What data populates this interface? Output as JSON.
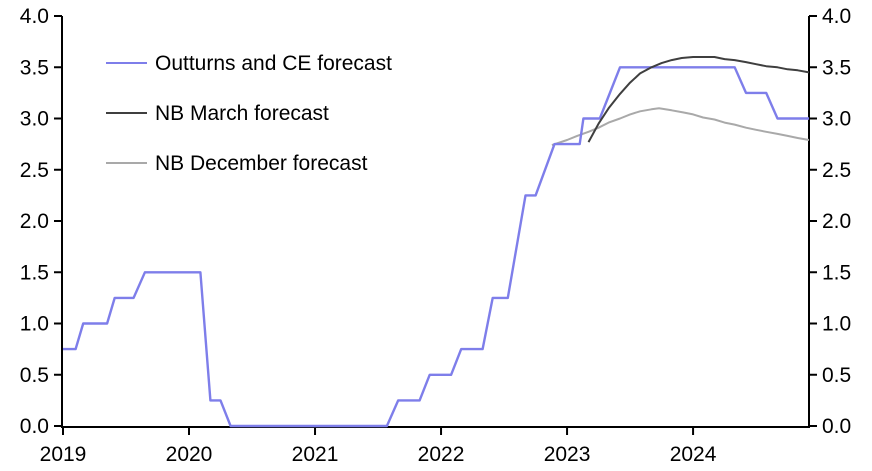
{
  "chart_data": {
    "type": "line",
    "title": "",
    "background": "#ffffff",
    "axis_color": "#000000",
    "grid": false,
    "legend_position": "top-left",
    "x_axis": {
      "range": [
        2019,
        2024.92
      ],
      "ticks": [
        2019,
        2020,
        2021,
        2022,
        2023,
        2024
      ],
      "tick_labels": [
        "2019",
        "2020",
        "2021",
        "2022",
        "2023",
        "2024"
      ]
    },
    "y_axis": {
      "range": [
        0,
        4
      ],
      "ticks": [
        0,
        0.5,
        1,
        1.5,
        2,
        2.5,
        3,
        3.5,
        4
      ],
      "tick_labels": [
        "0.0",
        "0.5",
        "1.0",
        "1.5",
        "2.0",
        "2.5",
        "3.0",
        "3.5",
        "4.0"
      ],
      "sides": [
        "left",
        "right"
      ]
    },
    "series": [
      {
        "id": "outturns-ce",
        "name": "Outturns and CE forecast",
        "color": "#7e7eea",
        "line_width": 2.4,
        "points": [
          [
            2019.0,
            0.75
          ],
          [
            2019.1,
            0.75
          ],
          [
            2019.16,
            1.0
          ],
          [
            2019.35,
            1.0
          ],
          [
            2019.41,
            1.25
          ],
          [
            2019.56,
            1.25
          ],
          [
            2019.65,
            1.5
          ],
          [
            2020.09,
            1.5
          ],
          [
            2020.17,
            0.25
          ],
          [
            2020.25,
            0.25
          ],
          [
            2020.33,
            0.0
          ],
          [
            2021.57,
            0.0
          ],
          [
            2021.66,
            0.25
          ],
          [
            2021.83,
            0.25
          ],
          [
            2021.91,
            0.5
          ],
          [
            2022.08,
            0.5
          ],
          [
            2022.16,
            0.75
          ],
          [
            2022.33,
            0.75
          ],
          [
            2022.41,
            1.25
          ],
          [
            2022.53,
            1.25
          ],
          [
            2022.67,
            2.25
          ],
          [
            2022.75,
            2.25
          ],
          [
            2022.9,
            2.75
          ],
          [
            2023.1,
            2.75
          ],
          [
            2023.13,
            3.0
          ],
          [
            2023.26,
            3.0
          ],
          [
            2023.42,
            3.5
          ],
          [
            2024.33,
            3.5
          ],
          [
            2024.42,
            3.25
          ],
          [
            2024.58,
            3.25
          ],
          [
            2024.67,
            3.0
          ],
          [
            2024.92,
            3.0
          ]
        ]
      },
      {
        "id": "nb-march",
        "name": "NB March forecast",
        "color": "#3f3f3f",
        "line_width": 2,
        "points": [
          [
            2023.17,
            2.77
          ],
          [
            2023.25,
            2.95
          ],
          [
            2023.33,
            3.1
          ],
          [
            2023.42,
            3.24
          ],
          [
            2023.5,
            3.35
          ],
          [
            2023.58,
            3.44
          ],
          [
            2023.67,
            3.5
          ],
          [
            2023.75,
            3.54
          ],
          [
            2023.83,
            3.57
          ],
          [
            2023.91,
            3.59
          ],
          [
            2024.0,
            3.6
          ],
          [
            2024.17,
            3.6
          ],
          [
            2024.25,
            3.58
          ],
          [
            2024.33,
            3.57
          ],
          [
            2024.42,
            3.55
          ],
          [
            2024.5,
            3.53
          ],
          [
            2024.58,
            3.51
          ],
          [
            2024.67,
            3.5
          ],
          [
            2024.75,
            3.48
          ],
          [
            2024.83,
            3.47
          ],
          [
            2024.92,
            3.45
          ]
        ]
      },
      {
        "id": "nb-december",
        "name": "NB December forecast",
        "color": "#a9a9a9",
        "line_width": 2,
        "points": [
          [
            2022.88,
            2.74
          ],
          [
            2023.0,
            2.79
          ],
          [
            2023.08,
            2.83
          ],
          [
            2023.17,
            2.87
          ],
          [
            2023.25,
            2.91
          ],
          [
            2023.33,
            2.96
          ],
          [
            2023.42,
            3.0
          ],
          [
            2023.5,
            3.04
          ],
          [
            2023.58,
            3.07
          ],
          [
            2023.67,
            3.09
          ],
          [
            2023.73,
            3.1
          ],
          [
            2023.83,
            3.08
          ],
          [
            2023.92,
            3.06
          ],
          [
            2024.0,
            3.04
          ],
          [
            2024.08,
            3.01
          ],
          [
            2024.17,
            2.99
          ],
          [
            2024.25,
            2.96
          ],
          [
            2024.33,
            2.94
          ],
          [
            2024.42,
            2.91
          ],
          [
            2024.5,
            2.89
          ],
          [
            2024.58,
            2.87
          ],
          [
            2024.67,
            2.85
          ],
          [
            2024.75,
            2.83
          ],
          [
            2024.83,
            2.81
          ],
          [
            2024.92,
            2.79
          ]
        ]
      }
    ]
  }
}
